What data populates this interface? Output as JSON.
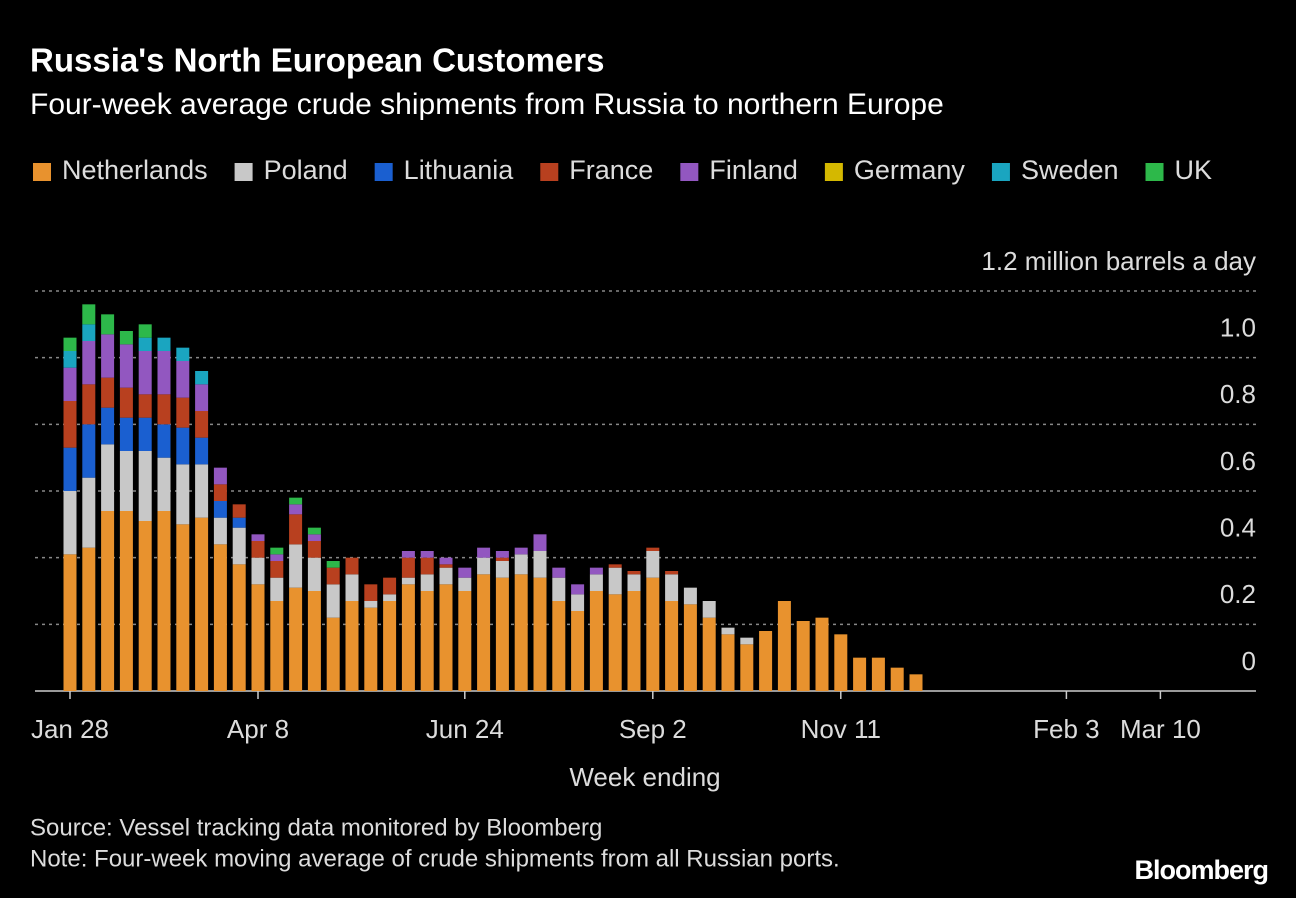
{
  "chart_data": {
    "type": "stacked_bar",
    "title": "Russia's North European Customers",
    "subtitle": "Four-week average crude shipments from Russia to northern Europe",
    "x_label": "Week ending",
    "source": "Source: Vessel tracking data monitored by Bloomberg",
    "note": "Note: Four-week moving average of crude shipments from all Russian ports.",
    "brand": "Bloomberg",
    "categories": [
      "Jan 28",
      null,
      null,
      null,
      null,
      null,
      null,
      null,
      null,
      null,
      "Apr 8",
      null,
      null,
      null,
      null,
      null,
      null,
      null,
      null,
      null,
      null,
      "Jun 24",
      null,
      null,
      null,
      null,
      null,
      null,
      null,
      null,
      null,
      "Sep 2",
      null,
      null,
      null,
      null,
      null,
      null,
      null,
      null,
      null,
      "Nov 11",
      null,
      null,
      null,
      null,
      null,
      null,
      null,
      null,
      null,
      null,
      null,
      "Feb 3",
      null,
      null,
      null,
      null,
      "Mar 10"
    ],
    "ylim": [
      0,
      1.2
    ],
    "yticks": [
      0,
      0.2,
      0.4,
      0.6,
      0.8,
      {
        "value": 1.0,
        "label": "1.0"
      },
      {
        "value": 1.2,
        "label": "1.2 million barrels a day"
      }
    ],
    "grid": true,
    "series": [
      {
        "name": "Netherlands",
        "color": "#e8922e",
        "values": [
          0.41,
          0.43,
          0.54,
          0.54,
          0.51,
          0.54,
          0.5,
          0.52,
          0.44,
          0.38,
          0.32,
          0.27,
          0.31,
          0.3,
          0.22,
          0.27,
          0.25,
          0.27,
          0.32,
          0.3,
          0.32,
          0.3,
          0.35,
          0.34,
          0.35,
          0.34,
          0.27,
          0.24,
          0.3,
          0.29,
          0.3,
          0.34,
          0.27,
          0.26,
          0.22,
          0.17,
          0.14,
          0.18,
          0.27,
          0.21,
          0.22,
          0.17,
          0.1,
          0.1,
          0.07,
          0.05,
          null,
          null,
          null,
          null,
          null,
          null,
          null,
          null,
          null,
          null,
          null,
          null,
          null
        ]
      },
      {
        "name": "Poland",
        "color": "#c8c8c8",
        "values": [
          0.19,
          0.21,
          0.2,
          0.18,
          0.21,
          0.16,
          0.18,
          0.16,
          0.08,
          0.11,
          0.08,
          0.07,
          0.13,
          0.1,
          0.1,
          0.08,
          0.02,
          0.02,
          0.02,
          0.05,
          0.05,
          0.04,
          0.05,
          0.05,
          0.06,
          0.08,
          0.07,
          0.05,
          0.05,
          0.08,
          0.05,
          0.08,
          0.08,
          0.05,
          0.05,
          0.02,
          0.02,
          0,
          0,
          0,
          0,
          0,
          0,
          0,
          0,
          0,
          null,
          null,
          null,
          null,
          null,
          null,
          null,
          null,
          null,
          null,
          null,
          null,
          null
        ]
      },
      {
        "name": "Lithuania",
        "color": "#1a5fd0",
        "values": [
          0.13,
          0.16,
          0.11,
          0.1,
          0.1,
          0.1,
          0.11,
          0.08,
          0.05,
          0.03,
          0,
          0,
          0,
          0,
          0,
          0,
          0,
          0,
          0,
          0,
          0,
          0,
          0,
          0,
          0,
          0,
          0,
          0,
          0,
          0,
          0,
          0,
          0,
          0,
          0,
          0,
          0,
          0,
          0,
          0,
          0,
          0,
          0,
          0,
          0,
          0,
          null,
          null,
          null,
          null,
          null,
          null,
          null,
          null,
          null,
          null,
          null,
          null,
          null
        ]
      },
      {
        "name": "France",
        "color": "#b8401f",
        "values": [
          0.14,
          0.12,
          0.09,
          0.09,
          0.07,
          0.09,
          0.09,
          0.08,
          0.05,
          0.04,
          0.05,
          0.05,
          0.09,
          0.05,
          0.05,
          0.05,
          0.05,
          0.05,
          0.06,
          0.05,
          0.01,
          0,
          0,
          0.01,
          0,
          0,
          0,
          0,
          0,
          0.01,
          0.01,
          0.01,
          0.01,
          0,
          0,
          0,
          0,
          0,
          0,
          0,
          0,
          0,
          0,
          0,
          0,
          0,
          null,
          null,
          null,
          null,
          null,
          null,
          null,
          null,
          null,
          null,
          null,
          null,
          null
        ]
      },
      {
        "name": "Finland",
        "color": "#9257c0",
        "values": [
          0.1,
          0.13,
          0.13,
          0.13,
          0.13,
          0.13,
          0.11,
          0.08,
          0.05,
          0,
          0.02,
          0.02,
          0.03,
          0.02,
          0,
          0,
          0,
          0,
          0.02,
          0.02,
          0.02,
          0.03,
          0.03,
          0.02,
          0.02,
          0.05,
          0.03,
          0.03,
          0.02,
          0,
          0,
          0,
          0,
          0,
          0,
          0,
          0,
          0,
          0,
          0,
          0,
          0,
          0,
          0,
          0,
          0,
          null,
          null,
          null,
          null,
          null,
          null,
          null,
          null,
          null,
          null,
          null,
          null,
          null
        ]
      },
      {
        "name": "Germany",
        "color": "#d4b800",
        "values": [
          0,
          0,
          0,
          0,
          0,
          0,
          0,
          0,
          0,
          0,
          0,
          0,
          0,
          0,
          0,
          0,
          0,
          0,
          0,
          0,
          0,
          0,
          0,
          0,
          0,
          0,
          0,
          0,
          0,
          0,
          0,
          0,
          0,
          0,
          0,
          0,
          0,
          0,
          0,
          0,
          0,
          0,
          0,
          0,
          0,
          0,
          null,
          null,
          null,
          null,
          null,
          null,
          null,
          null,
          null,
          null,
          null,
          null,
          null
        ]
      },
      {
        "name": "Sweden",
        "color": "#1aa5c0",
        "values": [
          0.05,
          0.05,
          0,
          0,
          0.04,
          0.04,
          0.04,
          0.04,
          0,
          0,
          0,
          0,
          0,
          0,
          0,
          0,
          0,
          0,
          0,
          0,
          0,
          0,
          0,
          0,
          0,
          0,
          0,
          0,
          0,
          0,
          0,
          0,
          0,
          0,
          0,
          0,
          0,
          0,
          0,
          0,
          0,
          0,
          0,
          0,
          0,
          0,
          null,
          null,
          null,
          null,
          null,
          null,
          null,
          null,
          null,
          null,
          null,
          null,
          null
        ]
      },
      {
        "name": "UK",
        "color": "#2db84a",
        "values": [
          0.04,
          0.06,
          0.06,
          0.04,
          0.04,
          0,
          0,
          0,
          0,
          0,
          0,
          0.02,
          0.02,
          0.02,
          0.02,
          0,
          0,
          0,
          0,
          0,
          0,
          0,
          0,
          0,
          0,
          0,
          0,
          0,
          0,
          0,
          0,
          0,
          0,
          0,
          0,
          0,
          0,
          0,
          0,
          0,
          0,
          0,
          0,
          0,
          0,
          0,
          null,
          null,
          null,
          null,
          null,
          null,
          null,
          null,
          null,
          null,
          null,
          null,
          null
        ]
      }
    ]
  }
}
